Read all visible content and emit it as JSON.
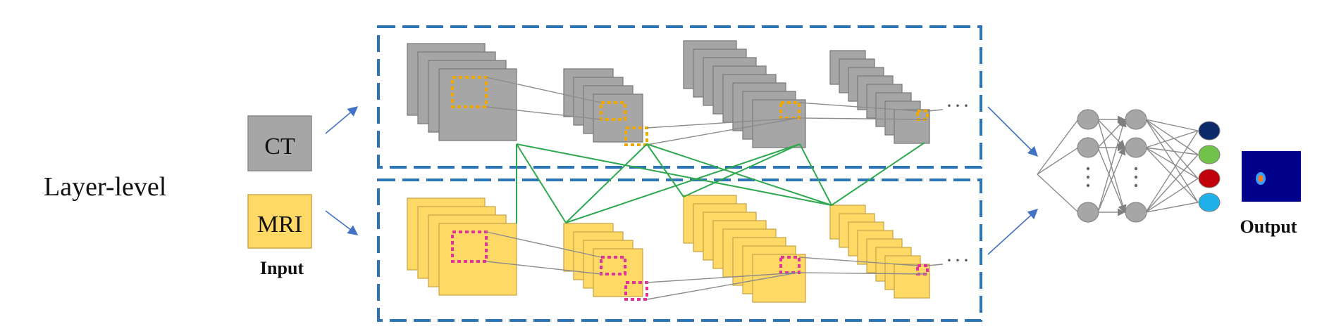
{
  "title": "Layer-level",
  "inputs": {
    "ct_label": "CT",
    "mri_label": "MRI",
    "caption": "Input"
  },
  "output": {
    "caption": "Output"
  },
  "continuation": {
    "ct": "···",
    "mri": "···"
  },
  "colors": {
    "ct_fill": "#a6a6a6",
    "mri_fill": "#ffd966",
    "dashed_border": "#2e75b6",
    "ct_kernel": "#f0a800",
    "mri_kernel": "#e0339a",
    "fusion_link": "#2ea84f",
    "arrow": "#4472c4",
    "neuron": "#a6a6a6",
    "output_classes": [
      "#0d2a6b",
      "#70c24a",
      "#c0000a",
      "#1fb0e8"
    ],
    "output_image_bg": "#00008b"
  },
  "icons": {
    "output_image": "segmentation-output-image"
  }
}
